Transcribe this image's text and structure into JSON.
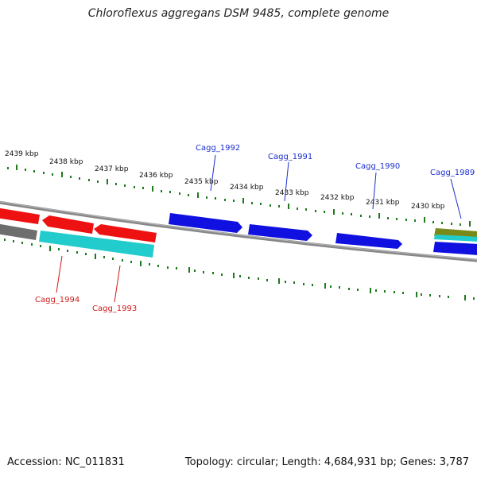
{
  "title": "Chloroflexus aggregans DSM 9485, complete genome",
  "accession": "Accession: NC_011831",
  "summary": "Topology: circular; Length: 4,684,931 bp; Genes: 3,787",
  "kbp_labels": [
    "2439 kbp",
    "2438 kbp",
    "2437 kbp",
    "2436 kbp",
    "2435 kbp",
    "2434 kbp",
    "2433 kbp",
    "2432 kbp",
    "2431 kbp",
    "2430 kbp"
  ],
  "forward_gene_labels": [
    "Cagg_1992",
    "Cagg_1991",
    "Cagg_1990",
    "Cagg_1989"
  ],
  "reverse_gene_labels": [
    "Cagg_1994",
    "Cagg_1993"
  ],
  "colors": {
    "tick": "#1f7a1f",
    "backbone": "#888888",
    "forward_label": "#1a2fd0",
    "reverse_label": "#d01a1a",
    "gene_blue": "#1010e0",
    "gene_red": "#ee1111",
    "gene_cyan": "#22cccc",
    "gene_olive": "#7a8a1a",
    "gene_gray": "#6e6e6e"
  }
}
